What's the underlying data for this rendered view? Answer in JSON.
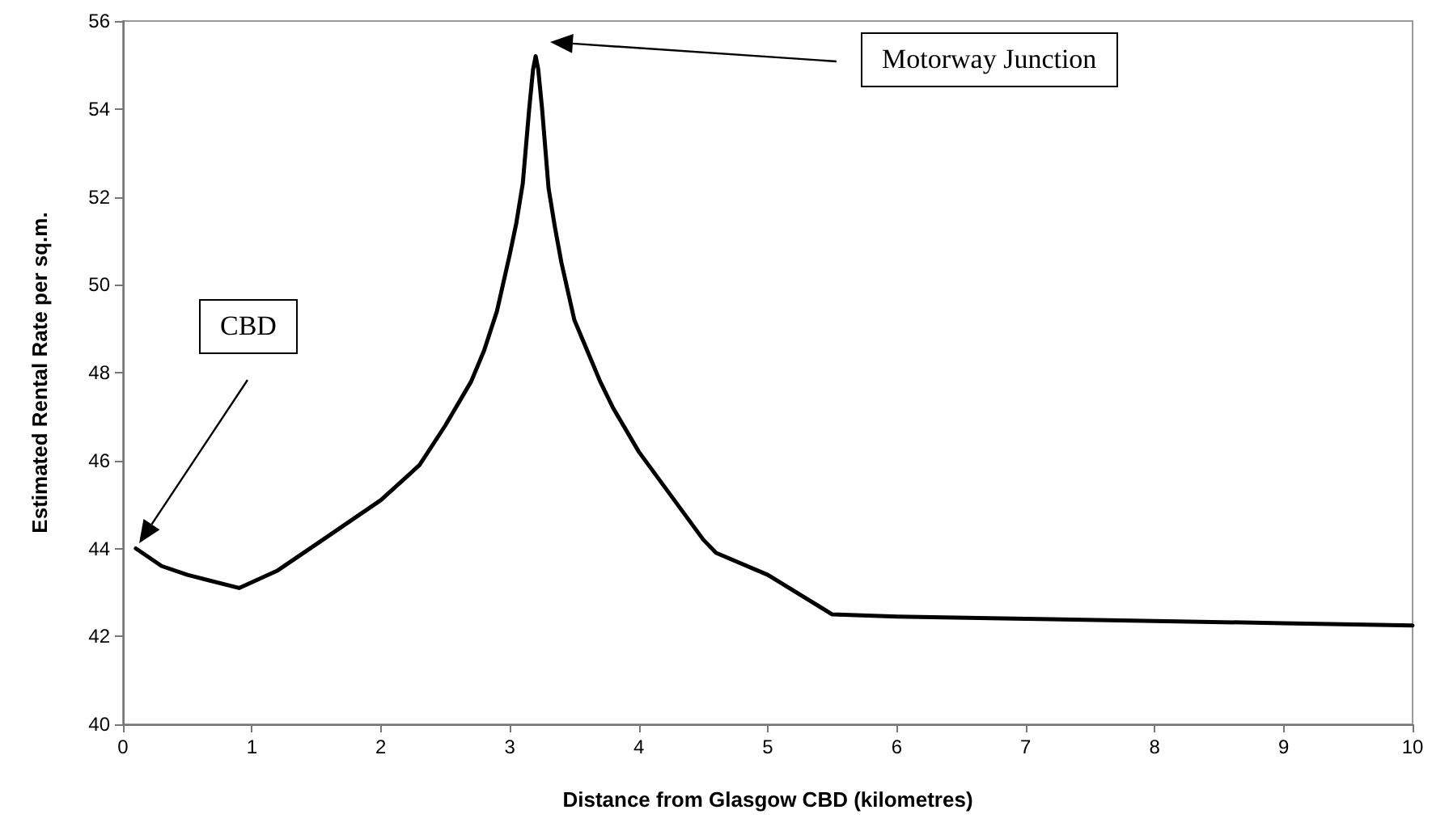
{
  "chart_data": {
    "type": "line",
    "xlabel": "Distance from Glasgow CBD (kilometres)",
    "ylabel": "Estimated Rental Rate per sq.m.",
    "xlim": [
      0,
      10
    ],
    "xticks": [
      0,
      1,
      2,
      3,
      4,
      5,
      6,
      7,
      8,
      9,
      10
    ],
    "ylim": [
      40,
      56
    ],
    "yticks": [
      40,
      42,
      44,
      46,
      48,
      50,
      52,
      54,
      56
    ],
    "grid": false,
    "marker": "none",
    "line_style": "solid",
    "series": [
      {
        "color": "#000000",
        "x": [
          0.1,
          0.3,
          0.5,
          0.9,
          1.2,
          1.5,
          2.0,
          2.3,
          2.5,
          2.7,
          2.8,
          2.9,
          3.0,
          3.05,
          3.1,
          3.15,
          3.18,
          3.2,
          3.22,
          3.25,
          3.3,
          3.35,
          3.4,
          3.5,
          3.6,
          3.7,
          3.8,
          4.0,
          4.3,
          4.5,
          4.6,
          5.0,
          5.5,
          6,
          7,
          8,
          9,
          10
        ],
        "values": [
          44.0,
          43.6,
          43.4,
          43.1,
          43.5,
          44.1,
          45.1,
          45.9,
          46.8,
          47.8,
          48.5,
          49.4,
          50.7,
          51.4,
          52.3,
          54.0,
          54.9,
          55.2,
          54.9,
          54.0,
          52.2,
          51.3,
          50.5,
          49.2,
          48.5,
          47.8,
          47.2,
          46.2,
          45.0,
          44.2,
          43.9,
          43.4,
          42.5,
          42.45,
          42.4,
          42.35,
          42.3,
          42.25
        ]
      }
    ],
    "annotations": [
      "CBD",
      "Motorway Junction"
    ]
  }
}
